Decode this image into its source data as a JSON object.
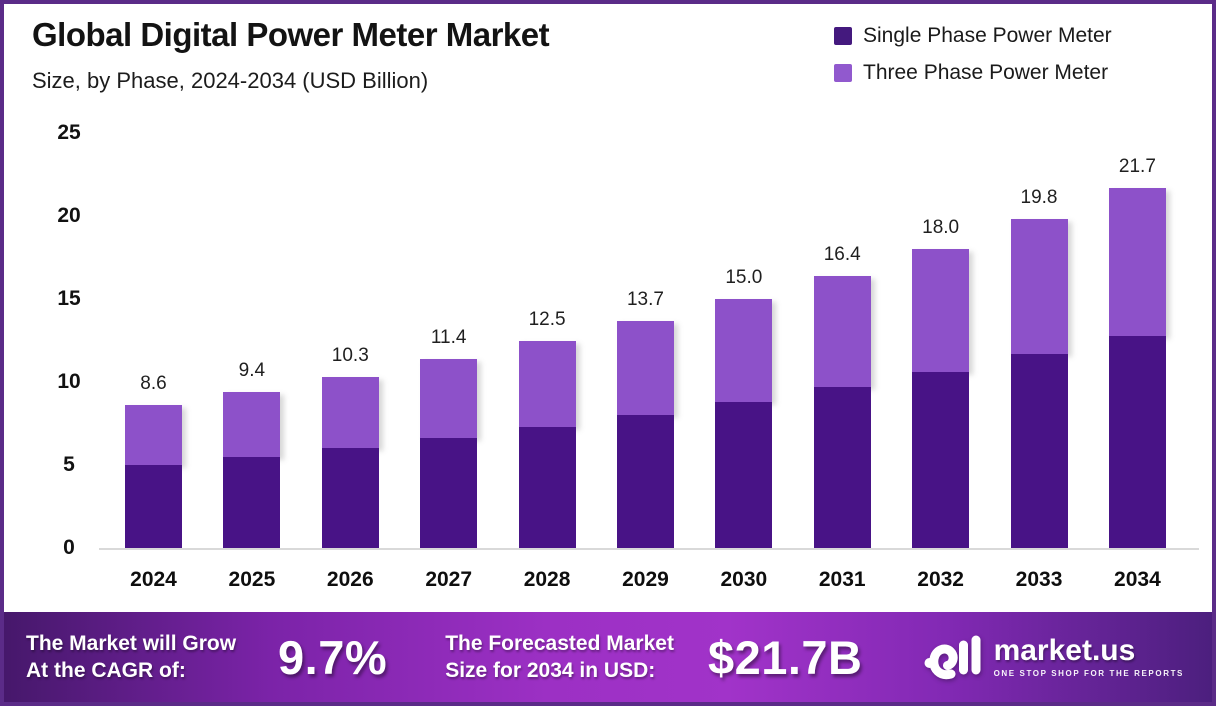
{
  "header": {
    "title": "Global Digital Power Meter Market",
    "subtitle": "Size, by Phase, 2024-2034 (USD Billion)"
  },
  "legend": [
    {
      "label": "Single Phase Power Meter",
      "color": "#44197e"
    },
    {
      "label": "Three Phase Power Meter",
      "color": "#9159ce"
    }
  ],
  "chart_data": {
    "type": "bar",
    "subtype": "stacked",
    "title": "Global Digital Power Meter Market Size, by Phase, 2024-2034 (USD Billion)",
    "categories": [
      "2024",
      "2025",
      "2026",
      "2027",
      "2028",
      "2029",
      "2030",
      "2031",
      "2032",
      "2033",
      "2034"
    ],
    "series": [
      {
        "name": "Single Phase Power Meter",
        "color": "#481386",
        "values": [
          5.0,
          5.5,
          6.0,
          6.6,
          7.3,
          8.0,
          8.8,
          9.7,
          10.6,
          11.7,
          12.8
        ]
      },
      {
        "name": "Three Phase Power Meter",
        "color": "#8d51c9",
        "values": [
          3.6,
          3.9,
          4.3,
          4.8,
          5.2,
          5.7,
          6.2,
          6.7,
          7.4,
          8.1,
          8.9
        ]
      }
    ],
    "totals": [
      8.6,
      9.4,
      10.3,
      11.4,
      12.5,
      13.7,
      15.0,
      16.4,
      18.0,
      19.8,
      21.7
    ],
    "total_labels": [
      "8.6",
      "9.4",
      "10.3",
      "11.4",
      "12.5",
      "13.7",
      "15.0",
      "16.4",
      "18.0",
      "19.8",
      "21.7"
    ],
    "ylabel": "USD Billion",
    "xlabel": "",
    "ylim": [
      0,
      25
    ],
    "yticks": [
      0,
      5,
      10,
      15,
      20,
      25
    ],
    "grid": false,
    "legend_position": "top-right"
  },
  "banner": {
    "cagr_label_line1": "The Market will Grow",
    "cagr_label_line2": "At the CAGR of:",
    "cagr_value": "9.7%",
    "forecast_label_line1": "The Forecasted Market",
    "forecast_label_line2": "Size for 2034 in USD:",
    "forecast_value": "$21.7B"
  },
  "logo": {
    "name": "market.us",
    "tagline": "ONE STOP SHOP FOR THE REPORTS"
  },
  "colors": {
    "frame_border": "#5b2b88",
    "single_phase": "#481386",
    "three_phase": "#8d51c9",
    "banner_gradient_start": "#46186b",
    "banner_gradient_mid": "#a133c9",
    "banner_gradient_end": "#4c1f7e",
    "baseline": "#d9d9d9"
  }
}
